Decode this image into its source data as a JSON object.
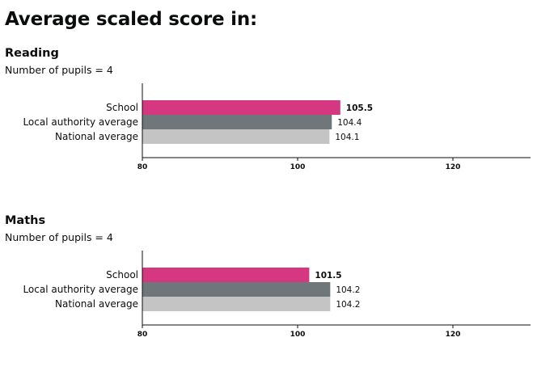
{
  "page": {
    "title": "Average scaled score in:"
  },
  "sections": [
    {
      "title": "Reading",
      "pupils_text": "Number of pupils = 4"
    },
    {
      "title": "Maths",
      "pupils_text": "Number of pupils = 4"
    }
  ],
  "chart_data": [
    {
      "type": "bar",
      "orientation": "horizontal",
      "title": "Reading",
      "categories": [
        "School",
        "Local authority average",
        "National average"
      ],
      "values": [
        105.5,
        104.4,
        104.1
      ],
      "value_labels": [
        "105.5",
        "104.4",
        "104.1"
      ],
      "bar_colors": [
        "#d53880",
        "#6f777b",
        "#c4c4c4"
      ],
      "highlight_category": "School",
      "xlim": [
        80,
        130
      ],
      "x_ticks": [
        80,
        100,
        120
      ],
      "x_tick_labels": [
        "80",
        "100",
        "120"
      ],
      "grid": false,
      "legend": "none"
    },
    {
      "type": "bar",
      "orientation": "horizontal",
      "title": "Maths",
      "categories": [
        "School",
        "Local authority average",
        "National average"
      ],
      "values": [
        101.5,
        104.2,
        104.2
      ],
      "value_labels": [
        "101.5",
        "104.2",
        "104.2"
      ],
      "bar_colors": [
        "#d53880",
        "#6f777b",
        "#c4c4c4"
      ],
      "highlight_category": "School",
      "xlim": [
        80,
        130
      ],
      "x_ticks": [
        80,
        100,
        120
      ],
      "x_tick_labels": [
        "80",
        "100",
        "120"
      ],
      "grid": false,
      "legend": "none"
    }
  ]
}
